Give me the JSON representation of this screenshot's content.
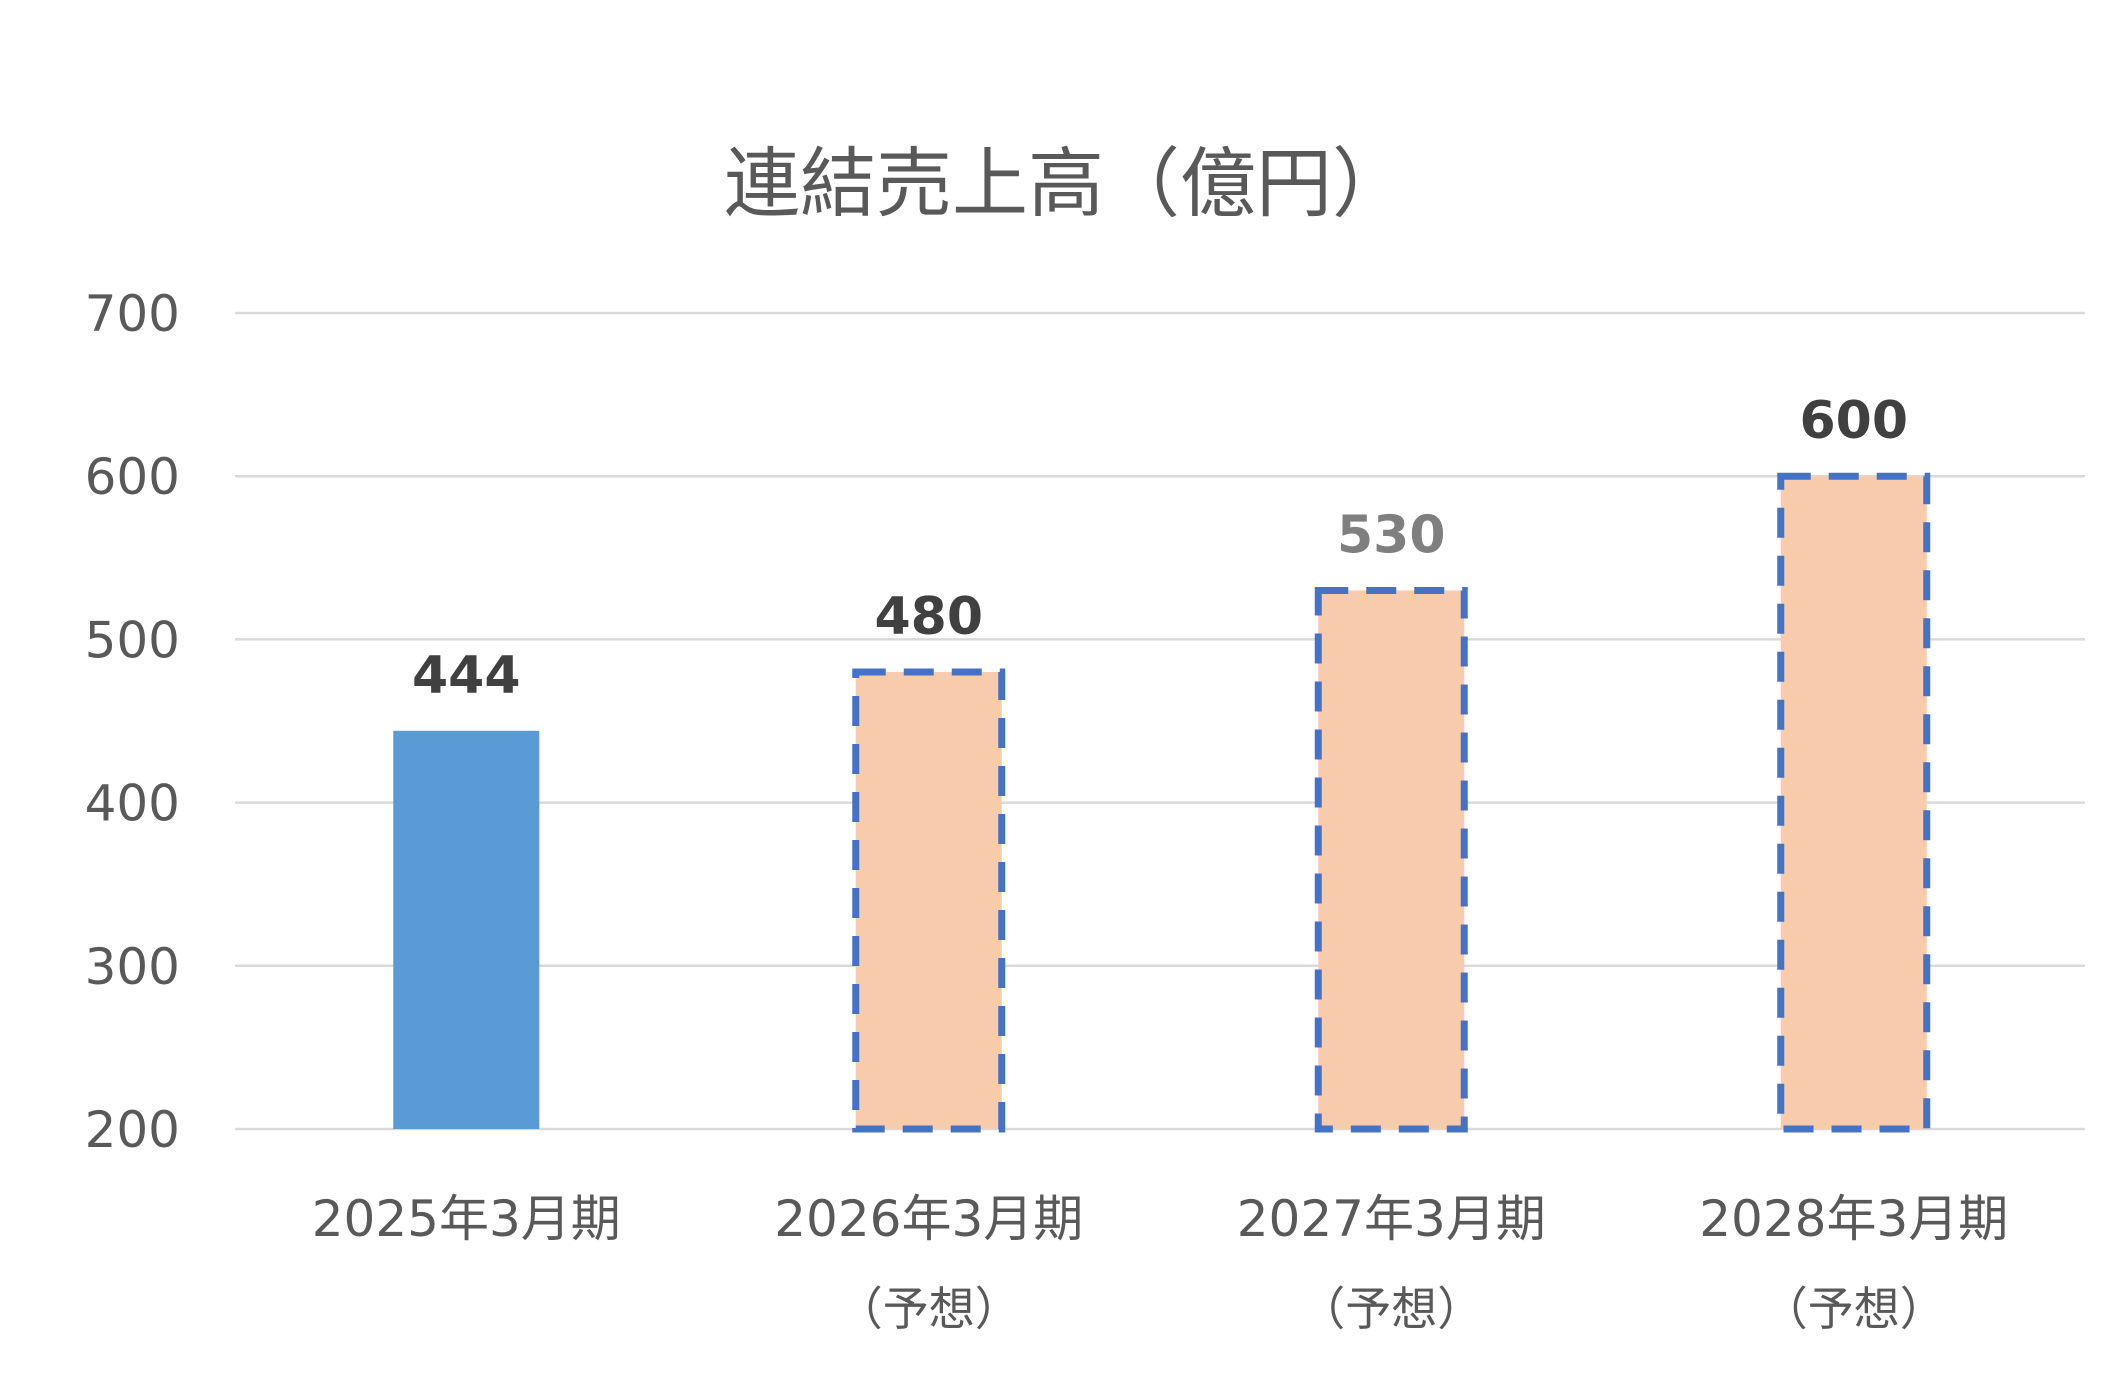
{
  "chart_data": {
    "type": "bar",
    "title": "連結売上高（億円）",
    "xlabel": "",
    "ylabel": "",
    "ylim": [
      200,
      700
    ],
    "yticks": [
      200,
      300,
      400,
      500,
      600,
      700
    ],
    "grid": true,
    "categories": [
      {
        "label": "2025年3月期",
        "sublabel": ""
      },
      {
        "label": "2026年3月期",
        "sublabel": "（予想）"
      },
      {
        "label": "2027年3月期",
        "sublabel": "（予想）"
      },
      {
        "label": "2028年3月期",
        "sublabel": "（予想）"
      }
    ],
    "values": [
      444,
      480,
      530,
      600
    ],
    "data_labels": [
      "444",
      "480",
      "530",
      "600"
    ],
    "bar_styles": [
      "actual",
      "forecast",
      "forecast",
      "forecast"
    ],
    "colors": {
      "actual_fill": "#5B9BD5",
      "forecast_fill": "#F8CBAD",
      "forecast_border": "#4472C4",
      "grid": "#D9D9D9",
      "axis_text": "#595959",
      "label_dark": "#404040",
      "label_gray": "#7F7F7F"
    },
    "data_label_colors": [
      "#404040",
      "#404040",
      "#7F7F7F",
      "#404040"
    ]
  }
}
